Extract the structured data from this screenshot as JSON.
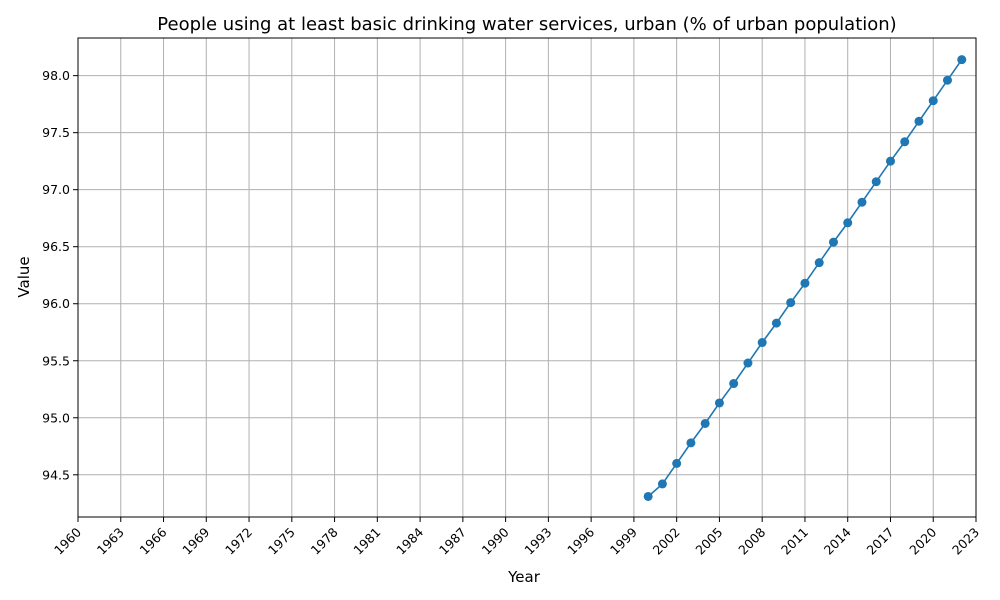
{
  "chart_data": {
    "type": "line",
    "title": "People using at least basic drinking water services, urban (% of urban population)",
    "xlabel": "Year",
    "ylabel": "Value",
    "x_ticks": [
      "1960",
      "1963",
      "1966",
      "1969",
      "1972",
      "1975",
      "1978",
      "1981",
      "1984",
      "1987",
      "1990",
      "1993",
      "1996",
      "1999",
      "2002",
      "2005",
      "2008",
      "2011",
      "2014",
      "2017",
      "2020",
      "2023"
    ],
    "y_ticks": [
      "94.5",
      "95.0",
      "95.5",
      "96.0",
      "96.5",
      "97.0",
      "97.5",
      "98.0"
    ],
    "xlim": [
      1960,
      2023
    ],
    "ylim": [
      94.13,
      98.33
    ],
    "grid": true,
    "series": [
      {
        "color": "#1f77b4",
        "x": [
          2000,
          2001,
          2002,
          2003,
          2004,
          2005,
          2006,
          2007,
          2008,
          2009,
          2010,
          2011,
          2012,
          2013,
          2014,
          2015,
          2016,
          2017,
          2018,
          2019,
          2020,
          2021,
          2022
        ],
        "values": [
          94.31,
          94.42,
          94.6,
          94.78,
          94.95,
          95.13,
          95.3,
          95.48,
          95.66,
          95.83,
          96.01,
          96.18,
          96.36,
          96.54,
          96.71,
          96.89,
          97.07,
          97.25,
          97.42,
          97.6,
          97.78,
          97.96,
          98.14
        ]
      }
    ]
  }
}
